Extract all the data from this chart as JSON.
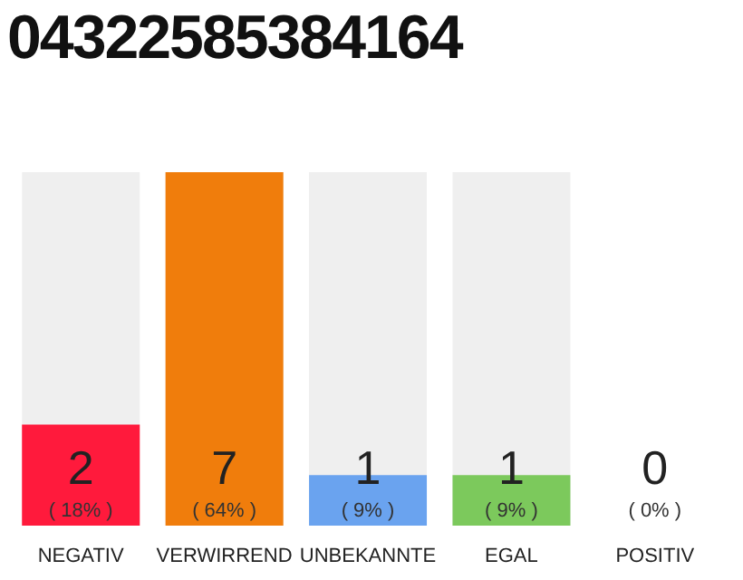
{
  "chart_data": {
    "type": "bar",
    "title": "04322585384164",
    "categories": [
      "NEGATIV",
      "VERWIRREND",
      "UNBEKANNTE",
      "EGAL",
      "POSITIV"
    ],
    "values": [
      2,
      7,
      1,
      1,
      0
    ],
    "colors": [
      "#ff1a3c",
      "#f07d0c",
      "#6aa3ef",
      "#7cc95c",
      "#cccccc"
    ],
    "data_labels": true,
    "annotations": [
      "( 18% )",
      "( 64% )",
      "( 9% )",
      "( 9% )",
      "( 0% )"
    ],
    "tick_labels": "x"
  }
}
